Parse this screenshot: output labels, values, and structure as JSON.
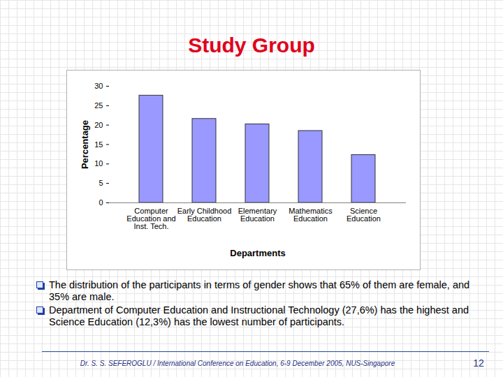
{
  "slide": {
    "title": "Study Group",
    "bullets": [
      "The distribution of the participants in terms of gender shows that 65% of them are female, and 35% are male.",
      "Department of Computer Education and Instructional Technology (27,6%) has the highest and Science Education (12,3%) has the lowest number of participants."
    ],
    "footer": "Dr. S. S. SEFEROGLU / International Conference on Education, 6-9 December 2005, NUS-Singapore",
    "page": 12
  },
  "chart_data": {
    "type": "bar",
    "x_label": "Departments",
    "y_label": "Percentage",
    "categories": [
      "Computer Education and Inst. Tech.",
      "Early Childhood Education",
      "Elementary Education",
      "Mathematics Education",
      "Science Education"
    ],
    "values": [
      27.6,
      21.6,
      20.2,
      18.5,
      12.3
    ],
    "color": "#9999ff",
    "ylim": [
      0,
      30
    ],
    "yticks": [
      0,
      5,
      10,
      15,
      20,
      25,
      30
    ],
    "grid": false
  }
}
